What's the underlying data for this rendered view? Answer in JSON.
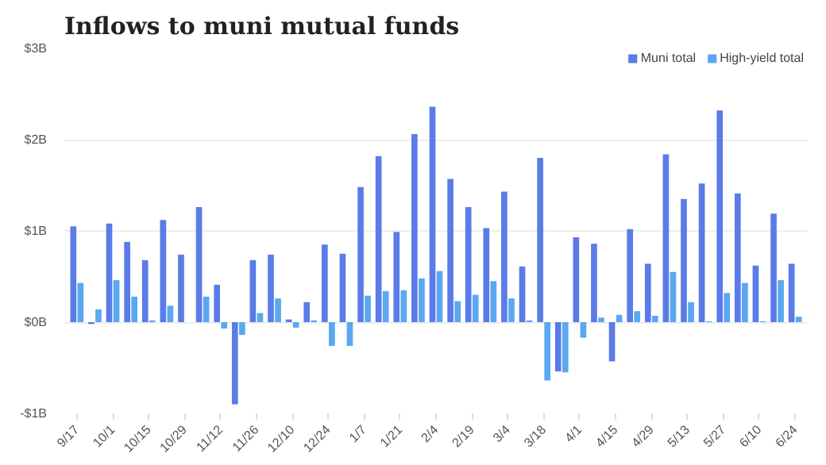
{
  "chart_data": {
    "type": "bar",
    "title": "Inflows to muni mutual funds",
    "categories": [
      "9/17",
      null,
      "10/1",
      null,
      "10/15",
      null,
      "10/29",
      null,
      "11/12",
      null,
      "11/26",
      null,
      "12/10",
      null,
      "12/24",
      null,
      "1/7",
      null,
      "1/21",
      null,
      "2/4",
      null,
      "2/19",
      null,
      "3/4",
      null,
      "3/18",
      null,
      "4/1",
      null,
      "4/15",
      null,
      "4/29",
      null,
      "5/13",
      null,
      "5/27",
      null,
      "6/10",
      null,
      "6/24"
    ],
    "series": [
      {
        "name": "Muni total",
        "color": "#5b7be8",
        "values": [
          1.05,
          -0.02,
          1.08,
          0.88,
          0.68,
          1.12,
          0.74,
          1.26,
          0.41,
          -0.9,
          0.68,
          0.74,
          0.03,
          0.22,
          0.85,
          0.75,
          1.48,
          1.82,
          0.99,
          2.06,
          2.36,
          1.57,
          1.26,
          1.03,
          1.43,
          0.61,
          1.8,
          -0.54,
          0.93,
          0.86,
          -0.43,
          1.02,
          0.64,
          1.84,
          1.35,
          1.52,
          2.32,
          1.41,
          0.62,
          1.19,
          0.64
        ]
      },
      {
        "name": "High-yield total",
        "color": "#5aa8f0",
        "values": [
          0.43,
          0.14,
          0.46,
          0.28,
          0.02,
          0.18,
          0.0,
          0.28,
          -0.07,
          -0.14,
          0.1,
          0.26,
          -0.06,
          0.02,
          -0.26,
          -0.26,
          0.29,
          0.34,
          0.35,
          0.48,
          0.56,
          0.23,
          0.3,
          0.45,
          0.26,
          0.02,
          -0.64,
          -0.55,
          -0.17,
          0.05,
          0.08,
          0.12,
          0.07,
          0.55,
          0.22,
          0.01,
          0.32,
          0.43,
          0.01,
          0.46,
          0.06
        ]
      }
    ],
    "ylim": [
      -1,
      3
    ],
    "yticks": [
      {
        "value": -1,
        "label": "-$1B"
      },
      {
        "value": 0,
        "label": "$0B"
      },
      {
        "value": 1,
        "label": "$1B"
      },
      {
        "value": 2,
        "label": "$2B"
      },
      {
        "value": 3,
        "label": "$3B"
      }
    ],
    "grid": "y",
    "legend": "top right"
  }
}
